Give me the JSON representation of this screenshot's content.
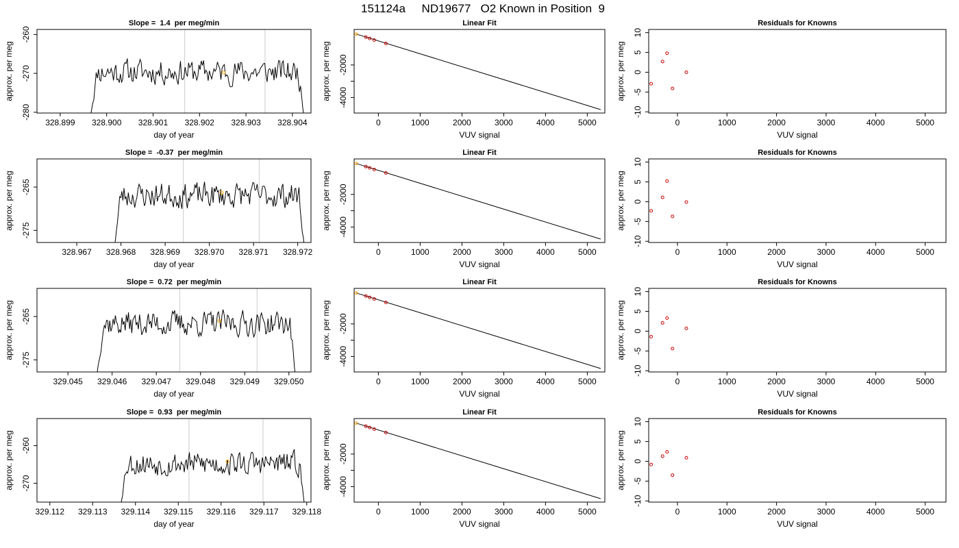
{
  "figure": {
    "title": "151124a     ND19677   O2 Known in Position  9"
  },
  "colors": {
    "trace": "#000000",
    "marker_line": "#d3d3d3",
    "highlight": "#ffa500",
    "residual_point": "#cd0000",
    "frame": "#000000"
  },
  "chart_data": [
    {
      "type": "line",
      "panel": "timeseries",
      "row": 1,
      "title": "Slope =  1.4  per meg/min",
      "xlabel": "day of year",
      "ylabel": "approx. per meg",
      "xlim": [
        328.8985,
        328.9044
      ],
      "ylim": [
        -280.2,
        -258.7
      ],
      "xticks": [
        328.899,
        328.9,
        328.901,
        328.902,
        328.903,
        328.904
      ],
      "xtick_labels": [
        "328.899",
        "328.900",
        "328.901",
        "328.902",
        "328.903",
        "328.904"
      ],
      "yticks": [
        -280,
        -270,
        -260
      ],
      "ytick_labels": [
        "-280",
        "-270",
        "-260"
      ],
      "vertical_lines": [
        328.90168,
        328.90341
      ],
      "highlight_point": {
        "x": 328.90252,
        "y": -269.8
      },
      "series": [
        {
          "x_start": 328.89965,
          "x_end": 328.90425,
          "n_points": 186,
          "level": -269.6,
          "start_ramp_from": -281,
          "end_drop_to": -281,
          "noise": 2.2,
          "seed": 11
        }
      ]
    },
    {
      "type": "line",
      "panel": "timeseries",
      "row": 2,
      "title": "Slope =  -0.37  per meg/min",
      "xlabel": "day of year",
      "ylabel": "approx. per meg",
      "xlim": [
        328.9661,
        328.9723
      ],
      "ylim": [
        -277.8,
        -258.5
      ],
      "xticks": [
        328.967,
        328.968,
        328.969,
        328.97,
        328.971,
        328.972
      ],
      "xtick_labels": [
        "328.967",
        "328.968",
        "328.969",
        "328.970",
        "328.971",
        "328.972"
      ],
      "yticks": [
        -275,
        -265
      ],
      "ytick_labels": [
        "-275",
        "-265"
      ],
      "vertical_lines": [
        328.96941,
        328.97113
      ],
      "highlight_point": {
        "x": 328.97028,
        "y": -266.3
      },
      "series": [
        {
          "x_start": 328.96785,
          "x_end": 328.97215,
          "n_points": 178,
          "level": -266.9,
          "start_ramp_from": -279,
          "end_drop_to": -279,
          "noise": 2.0,
          "seed": 23
        }
      ]
    },
    {
      "type": "line",
      "panel": "timeseries",
      "row": 3,
      "title": "Slope =  0.72  per meg/min",
      "xlabel": "day of year",
      "ylabel": "approx. per meg",
      "xlim": [
        329.0443,
        329.0505
      ],
      "ylim": [
        -277.8,
        -258.5
      ],
      "xticks": [
        329.045,
        329.046,
        329.047,
        329.048,
        329.049,
        329.05
      ],
      "xtick_labels": [
        "329.045",
        "329.046",
        "329.047",
        "329.048",
        "329.049",
        "329.050"
      ],
      "yticks": [
        -275,
        -265
      ],
      "ytick_labels": [
        "-275",
        "-265"
      ],
      "vertical_lines": [
        329.04753,
        329.04928
      ],
      "highlight_point": {
        "x": 329.04843,
        "y": -266.0
      },
      "series": [
        {
          "x_start": 329.04565,
          "x_end": 329.05015,
          "n_points": 182,
          "level": -266.6,
          "start_ramp_from": -279,
          "end_drop_to": -279,
          "noise": 2.0,
          "seed": 37
        }
      ]
    },
    {
      "type": "line",
      "panel": "timeseries",
      "row": 4,
      "title": "Slope =  0.93  per meg/min",
      "xlabel": "day of year",
      "ylabel": "approx. per meg",
      "xlim": [
        329.1117,
        329.1181
      ],
      "ylim": [
        -275.0,
        -252.8
      ],
      "xticks": [
        329.112,
        329.113,
        329.114,
        329.115,
        329.116,
        329.117,
        329.118
      ],
      "xtick_labels": [
        "329.112",
        "329.113",
        "329.114",
        "329.115",
        "329.116",
        "329.117",
        "329.118"
      ],
      "yticks": [
        -270,
        -260
      ],
      "ytick_labels": [
        "-270",
        "-260"
      ],
      "vertical_lines": [
        329.11525,
        329.11698
      ],
      "highlight_point": {
        "x": 329.11615,
        "y": -264.2
      },
      "series": [
        {
          "x_start": 329.11365,
          "x_end": 329.11795,
          "n_points": 180,
          "level": -264.8,
          "start_ramp_from": -276,
          "end_drop_to": -276,
          "noise": 2.2,
          "seed": 53
        }
      ]
    },
    {
      "type": "scatter",
      "panel": "fit",
      "row": 1,
      "title": "Linear Fit",
      "xlabel": "VUV signal",
      "ylabel": "approx. per meg",
      "xlim": [
        -580,
        5420
      ],
      "ylim": [
        -4950,
        180
      ],
      "xticks": [
        0,
        1000,
        2000,
        3000,
        4000,
        5000
      ],
      "xtick_labels": [
        "0",
        "1000",
        "2000",
        "3000",
        "4000",
        "5000"
      ],
      "yticks": [
        -4000,
        -3000,
        -2000
      ],
      "ytick_labels": [
        "-4000",
        "",
        "-2000"
      ],
      "fit_line": {
        "x": [
          -530,
          5320
        ],
        "y": [
          -102,
          -4740
        ]
      },
      "points": {
        "x": [
          -530,
          -300,
          -210,
          -100,
          180
        ],
        "y": [
          -102,
          -290,
          -370,
          -470,
          -683
        ]
      },
      "highlight_x": -530
    },
    {
      "type": "scatter",
      "panel": "fit",
      "row": 2,
      "title": "Linear Fit",
      "xlabel": "VUV signal",
      "ylabel": "approx. per meg",
      "xlim": [
        -580,
        5420
      ],
      "ylim": [
        -4950,
        180
      ],
      "xticks": [
        0,
        1000,
        2000,
        3000,
        4000,
        5000
      ],
      "xtick_labels": [
        "0",
        "1000",
        "2000",
        "3000",
        "4000",
        "5000"
      ],
      "yticks": [
        -4000,
        -3000,
        -2000
      ],
      "ytick_labels": [
        "-4000",
        "",
        "-2000"
      ],
      "fit_line": {
        "x": [
          -530,
          5320
        ],
        "y": [
          -102,
          -4740
        ]
      },
      "points": {
        "x": [
          -530,
          -300,
          -210,
          -100,
          180
        ],
        "y": [
          -102,
          -290,
          -370,
          -470,
          -683
        ]
      },
      "highlight_x": -530
    },
    {
      "type": "scatter",
      "panel": "fit",
      "row": 3,
      "title": "Linear Fit",
      "xlabel": "VUV signal",
      "ylabel": "approx. per meg",
      "xlim": [
        -580,
        5420
      ],
      "ylim": [
        -4950,
        180
      ],
      "xticks": [
        0,
        1000,
        2000,
        3000,
        4000,
        5000
      ],
      "xtick_labels": [
        "0",
        "1000",
        "2000",
        "3000",
        "4000",
        "5000"
      ],
      "yticks": [
        -4000,
        -3000,
        -2000
      ],
      "ytick_labels": [
        "-4000",
        "",
        "-2000"
      ],
      "fit_line": {
        "x": [
          -530,
          5320
        ],
        "y": [
          -102,
          -4740
        ]
      },
      "points": {
        "x": [
          -530,
          -300,
          -210,
          -100,
          180
        ],
        "y": [
          -102,
          -290,
          -370,
          -470,
          -683
        ]
      },
      "highlight_x": -530
    },
    {
      "type": "scatter",
      "panel": "fit",
      "row": 4,
      "title": "Linear Fit",
      "xlabel": "VUV signal",
      "ylabel": "approx. per meg",
      "xlim": [
        -580,
        5420
      ],
      "ylim": [
        -4950,
        180
      ],
      "xticks": [
        0,
        1000,
        2000,
        3000,
        4000,
        5000
      ],
      "xtick_labels": [
        "0",
        "1000",
        "2000",
        "3000",
        "4000",
        "5000"
      ],
      "yticks": [
        -4000,
        -3000,
        -2000
      ],
      "ytick_labels": [
        "-4000",
        "",
        "-2000"
      ],
      "fit_line": {
        "x": [
          -530,
          5320
        ],
        "y": [
          -102,
          -4740
        ]
      },
      "points": {
        "x": [
          -530,
          -300,
          -210,
          -100,
          180
        ],
        "y": [
          -102,
          -290,
          -370,
          -470,
          -683
        ]
      },
      "highlight_x": -530
    },
    {
      "type": "scatter",
      "panel": "residuals",
      "row": 1,
      "title": "Residuals for Knowns",
      "xlabel": "VUV signal",
      "ylabel": "approx. per meg",
      "xlim": [
        -580,
        5420
      ],
      "ylim": [
        -10.3,
        10.8
      ],
      "xticks": [
        0,
        1000,
        2000,
        3000,
        4000,
        5000
      ],
      "xtick_labels": [
        "0",
        "1000",
        "2000",
        "3000",
        "4000",
        "5000"
      ],
      "yticks": [
        -10,
        -5,
        0,
        5,
        10
      ],
      "ytick_labels": [
        "-10",
        "-5",
        "0",
        "5",
        "10"
      ],
      "points": {
        "x": [
          -530,
          -300,
          -210,
          -100,
          180
        ],
        "y": [
          -2.9,
          2.7,
          4.8,
          -4.1,
          0.0
        ]
      }
    },
    {
      "type": "scatter",
      "panel": "residuals",
      "row": 2,
      "title": "Residuals for Knowns",
      "xlabel": "VUV signal",
      "ylabel": "approx. per meg",
      "xlim": [
        -580,
        5420
      ],
      "ylim": [
        -10.3,
        10.8
      ],
      "xticks": [
        0,
        1000,
        2000,
        3000,
        4000,
        5000
      ],
      "xtick_labels": [
        "0",
        "1000",
        "2000",
        "3000",
        "4000",
        "5000"
      ],
      "yticks": [
        -10,
        -5,
        0,
        5,
        10
      ],
      "ytick_labels": [
        "-10",
        "-5",
        "0",
        "5",
        "10"
      ],
      "points": {
        "x": [
          -530,
          -300,
          -210,
          -100,
          180
        ],
        "y": [
          -2.3,
          1.1,
          5.2,
          -3.7,
          -0.1
        ]
      }
    },
    {
      "type": "scatter",
      "panel": "residuals",
      "row": 3,
      "title": "Residuals for Knowns",
      "xlabel": "VUV signal",
      "ylabel": "approx. per meg",
      "xlim": [
        -580,
        5420
      ],
      "ylim": [
        -10.3,
        10.8
      ],
      "xticks": [
        0,
        1000,
        2000,
        3000,
        4000,
        5000
      ],
      "xtick_labels": [
        "0",
        "1000",
        "2000",
        "3000",
        "4000",
        "5000"
      ],
      "yticks": [
        -10,
        -5,
        0,
        5,
        10
      ],
      "ytick_labels": [
        "-10",
        "-5",
        "0",
        "5",
        "10"
      ],
      "points": {
        "x": [
          -530,
          -300,
          -210,
          -100,
          180
        ],
        "y": [
          -1.4,
          2.1,
          3.3,
          -4.4,
          0.7
        ]
      }
    },
    {
      "type": "scatter",
      "panel": "residuals",
      "row": 4,
      "title": "Residuals for Knowns",
      "xlabel": "VUV signal",
      "ylabel": "approx. per meg",
      "xlim": [
        -580,
        5420
      ],
      "ylim": [
        -10.3,
        10.8
      ],
      "xticks": [
        0,
        1000,
        2000,
        3000,
        4000,
        5000
      ],
      "xtick_labels": [
        "0",
        "1000",
        "2000",
        "3000",
        "4000",
        "5000"
      ],
      "yticks": [
        -10,
        -5,
        0,
        5,
        10
      ],
      "ytick_labels": [
        "-10",
        "-5",
        "0",
        "5",
        "10"
      ],
      "points": {
        "x": [
          -530,
          -300,
          -210,
          -100,
          180
        ],
        "y": [
          -0.8,
          1.3,
          2.4,
          -3.5,
          0.9
        ]
      }
    }
  ]
}
